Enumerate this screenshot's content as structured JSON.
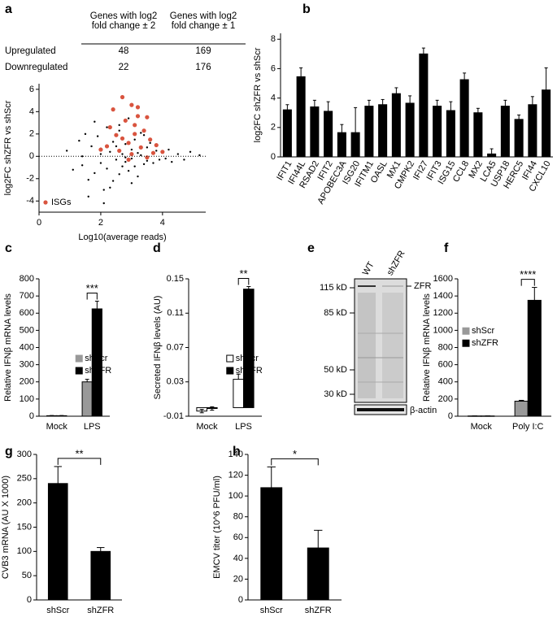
{
  "chart_data": [
    {
      "type": "scatter",
      "panel": "a",
      "table": {
        "columns": [
          "Genes with log2 fold change ± 2",
          "Genes with log2 fold change ± 1"
        ],
        "rows": [
          [
            "Upregulated",
            "48",
            "169"
          ],
          [
            "Downregulated",
            "22",
            "176"
          ]
        ]
      },
      "xlabel": "Log10(average reads)",
      "ylabel": "log2FC shZFR vs shScr",
      "xlim": [
        0,
        5.4
      ],
      "xticks": [
        0,
        2,
        4
      ],
      "ylim": [
        -5,
        6.5
      ],
      "yticks": [
        -4,
        -2,
        0,
        2,
        4,
        6
      ],
      "reference_line": 0,
      "legend": "bottom-left",
      "series": [
        {
          "color": "#000000",
          "x": [
            0.9,
            1.1,
            1.3,
            1.4,
            1.5,
            1.6,
            1.7,
            1.8,
            1.9,
            2.0,
            2.0,
            2.1,
            2.2,
            2.2,
            2.3,
            2.4,
            2.4,
            2.5,
            2.5,
            2.6,
            2.6,
            2.7,
            2.7,
            2.8,
            2.8,
            2.9,
            2.9,
            3.0,
            3.0,
            3.1,
            3.1,
            3.2,
            3.2,
            3.3,
            3.3,
            3.4,
            3.5,
            3.5,
            3.6,
            3.7,
            3.8,
            3.9,
            4.0,
            4.1,
            4.2,
            4.3,
            4.5,
            4.7,
            4.9,
            5.2,
            1.6,
            1.8,
            2.1,
            2.3,
            2.6,
            3.0,
            3.4,
            1.4,
            2.0,
            2.8
          ],
          "y": [
            0.5,
            -1.2,
            1.4,
            -0.8,
            2.0,
            -2.1,
            0.9,
            -1.5,
            1.8,
            -0.6,
            0.7,
            -3.0,
            2.6,
            -1.1,
            0.4,
            -2.2,
            1.3,
            -0.3,
            0.9,
            -1.6,
            2.3,
            0.2,
            -0.9,
            1.1,
            -0.5,
            3.4,
            -1.3,
            0.6,
            -0.2,
            1.5,
            -0.9,
            0.3,
            -1.8,
            2.1,
            0.1,
            -0.7,
            0.8,
            -0.4,
            1.2,
            -0.6,
            0.5,
            -0.3,
            0.4,
            -0.2,
            0.6,
            -0.5,
            0.2,
            -0.3,
            0.4,
            0.1,
            -3.6,
            3.1,
            -4.2,
            -2.8,
            2.8,
            -2.4,
            1.9,
            0.0,
            0.2,
            -0.1
          ]
        },
        {
          "name": "ISGs",
          "color": "#d9543f",
          "x": [
            2.7,
            3.0,
            3.2,
            3.5,
            2.4,
            2.8,
            3.1,
            3.4,
            3.6,
            2.5,
            2.9,
            3.3,
            2.6,
            3.0,
            3.7,
            2.2,
            3.5,
            2.9,
            4.0,
            3.1,
            2.3,
            3.8,
            2.7,
            3.2,
            2.0
          ],
          "y": [
            5.3,
            4.6,
            4.4,
            3.5,
            4.2,
            3.2,
            2.8,
            2.3,
            1.5,
            1.9,
            1.2,
            0.8,
            0.5,
            0.2,
            0.3,
            0.9,
            -0.1,
            -0.3,
            0.4,
            2.0,
            2.6,
            1.0,
            1.6,
            3.6,
            0.6
          ]
        }
      ]
    },
    {
      "type": "bar",
      "panel": "b",
      "ylabel": "log2FC shZFR vs shScr",
      "categories": [
        "IFIT1",
        "IFI44L",
        "RSAD2",
        "IFIT2",
        "APOBEC3A",
        "ISG20",
        "IFITM1",
        "OASL",
        "MX1",
        "CMPK2",
        "IFI27",
        "IFIT3",
        "ISG15",
        "CCL8",
        "MX2",
        "LCA5",
        "USP18",
        "HERC5",
        "IFI44",
        "CXCL10"
      ],
      "ylim": [
        0,
        8.4
      ],
      "yticks": [
        0,
        2,
        4,
        6,
        8
      ],
      "series": [
        {
          "color": "#000000",
          "values": [
            3.2,
            5.45,
            3.4,
            3.1,
            1.65,
            1.65,
            3.45,
            3.55,
            4.3,
            3.65,
            7.0,
            3.45,
            3.15,
            5.25,
            3.0,
            0.2,
            3.45,
            2.55,
            3.55,
            4.55
          ],
          "errors": [
            0.35,
            0.6,
            0.45,
            0.65,
            0.55,
            1.7,
            0.4,
            0.35,
            0.4,
            0.5,
            0.4,
            0.4,
            0.6,
            0.45,
            0.3,
            0.35,
            0.4,
            0.3,
            0.55,
            1.5
          ]
        }
      ]
    },
    {
      "type": "bar",
      "panel": "c",
      "ylabel": "Relative IFNβ mRNA levels",
      "categories": [
        "Mock",
        "LPS"
      ],
      "ylim": [
        0,
        800
      ],
      "yticks": [
        0,
        100,
        200,
        300,
        400,
        500,
        600,
        700,
        800
      ],
      "significance": "***",
      "legend": "right",
      "series": [
        {
          "name": "shScr",
          "color": "#999999",
          "values": [
            3,
            200
          ],
          "errors": [
            1,
            15
          ]
        },
        {
          "name": "shZFR",
          "color": "#000000",
          "values": [
            3,
            625
          ],
          "errors": [
            1,
            45
          ]
        }
      ]
    },
    {
      "type": "bar",
      "panel": "d",
      "ylabel": "Secreted IFNβ levels (AU)",
      "categories": [
        "Mock",
        "LPS"
      ],
      "ylim": [
        -0.01,
        0.15
      ],
      "yticks": [
        -0.01,
        0.03,
        0.07,
        0.11,
        0.15
      ],
      "significance": "**",
      "legend": "right",
      "series": [
        {
          "name": "shScr",
          "color": "#ffffff",
          "values": [
            -0.004,
            0.033
          ],
          "errors": [
            0.002,
            0.006
          ]
        },
        {
          "name": "shZFR",
          "color": "#000000",
          "values": [
            -0.001,
            0.138
          ],
          "errors": [
            0.002,
            0.003
          ]
        }
      ]
    },
    {
      "type": "blot",
      "panel": "e",
      "lanes": [
        "WT",
        "shZFR"
      ],
      "markers": [
        "115 kD",
        "85 kD",
        "50 kD",
        "30 kD"
      ],
      "bands": [
        "ZFR",
        "β-actin"
      ]
    },
    {
      "type": "bar",
      "panel": "f",
      "ylabel": "Relative IFNβ mRNA levels",
      "categories": [
        "Mock",
        "Poly I:C"
      ],
      "ylim": [
        0,
        1600
      ],
      "yticks": [
        0,
        200,
        400,
        600,
        800,
        1000,
        1200,
        1400,
        1600
      ],
      "significance": "****",
      "legend": "top-left",
      "series": [
        {
          "name": "shScr",
          "color": "#999999",
          "values": [
            3,
            175
          ],
          "errors": [
            1,
            10
          ]
        },
        {
          "name": "shZFR",
          "color": "#000000",
          "values": [
            3,
            1350
          ],
          "errors": [
            1,
            150
          ]
        }
      ]
    },
    {
      "type": "bar",
      "panel": "g",
      "ylabel": "CVB3 mRNA (AU X 1000)",
      "categories": [
        "shScr",
        "shZFR"
      ],
      "ylim": [
        0,
        300
      ],
      "yticks": [
        0,
        50,
        100,
        150,
        200,
        250,
        300
      ],
      "significance": "**",
      "series": [
        {
          "color": "#000000",
          "values": [
            240,
            100
          ],
          "errors": [
            35,
            8
          ]
        }
      ]
    },
    {
      "type": "bar",
      "panel": "h",
      "ylabel": "EMCV titer (10^6 PFU/ml)",
      "categories": [
        "shScr",
        "shZFR"
      ],
      "ylim": [
        0,
        140
      ],
      "yticks": [
        0,
        20,
        40,
        60,
        80,
        100,
        120,
        140
      ],
      "significance": "*",
      "series": [
        {
          "color": "#000000",
          "values": [
            108,
            50
          ],
          "errors": [
            20,
            17
          ]
        }
      ]
    }
  ]
}
